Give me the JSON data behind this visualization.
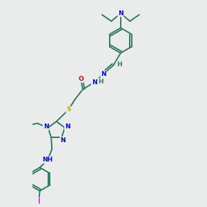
{
  "background_color": "#eaecec",
  "bond_color": "#2d7a5f",
  "bond_width": 1.4,
  "atom_colors": {
    "N": "#0000ee",
    "O": "#dd0000",
    "S": "#bbaa00",
    "I": "#cc44cc",
    "C": "#2d7a5f",
    "H": "#2d7a5f"
  },
  "font_size": 6.5,
  "font_size_large": 7.5
}
